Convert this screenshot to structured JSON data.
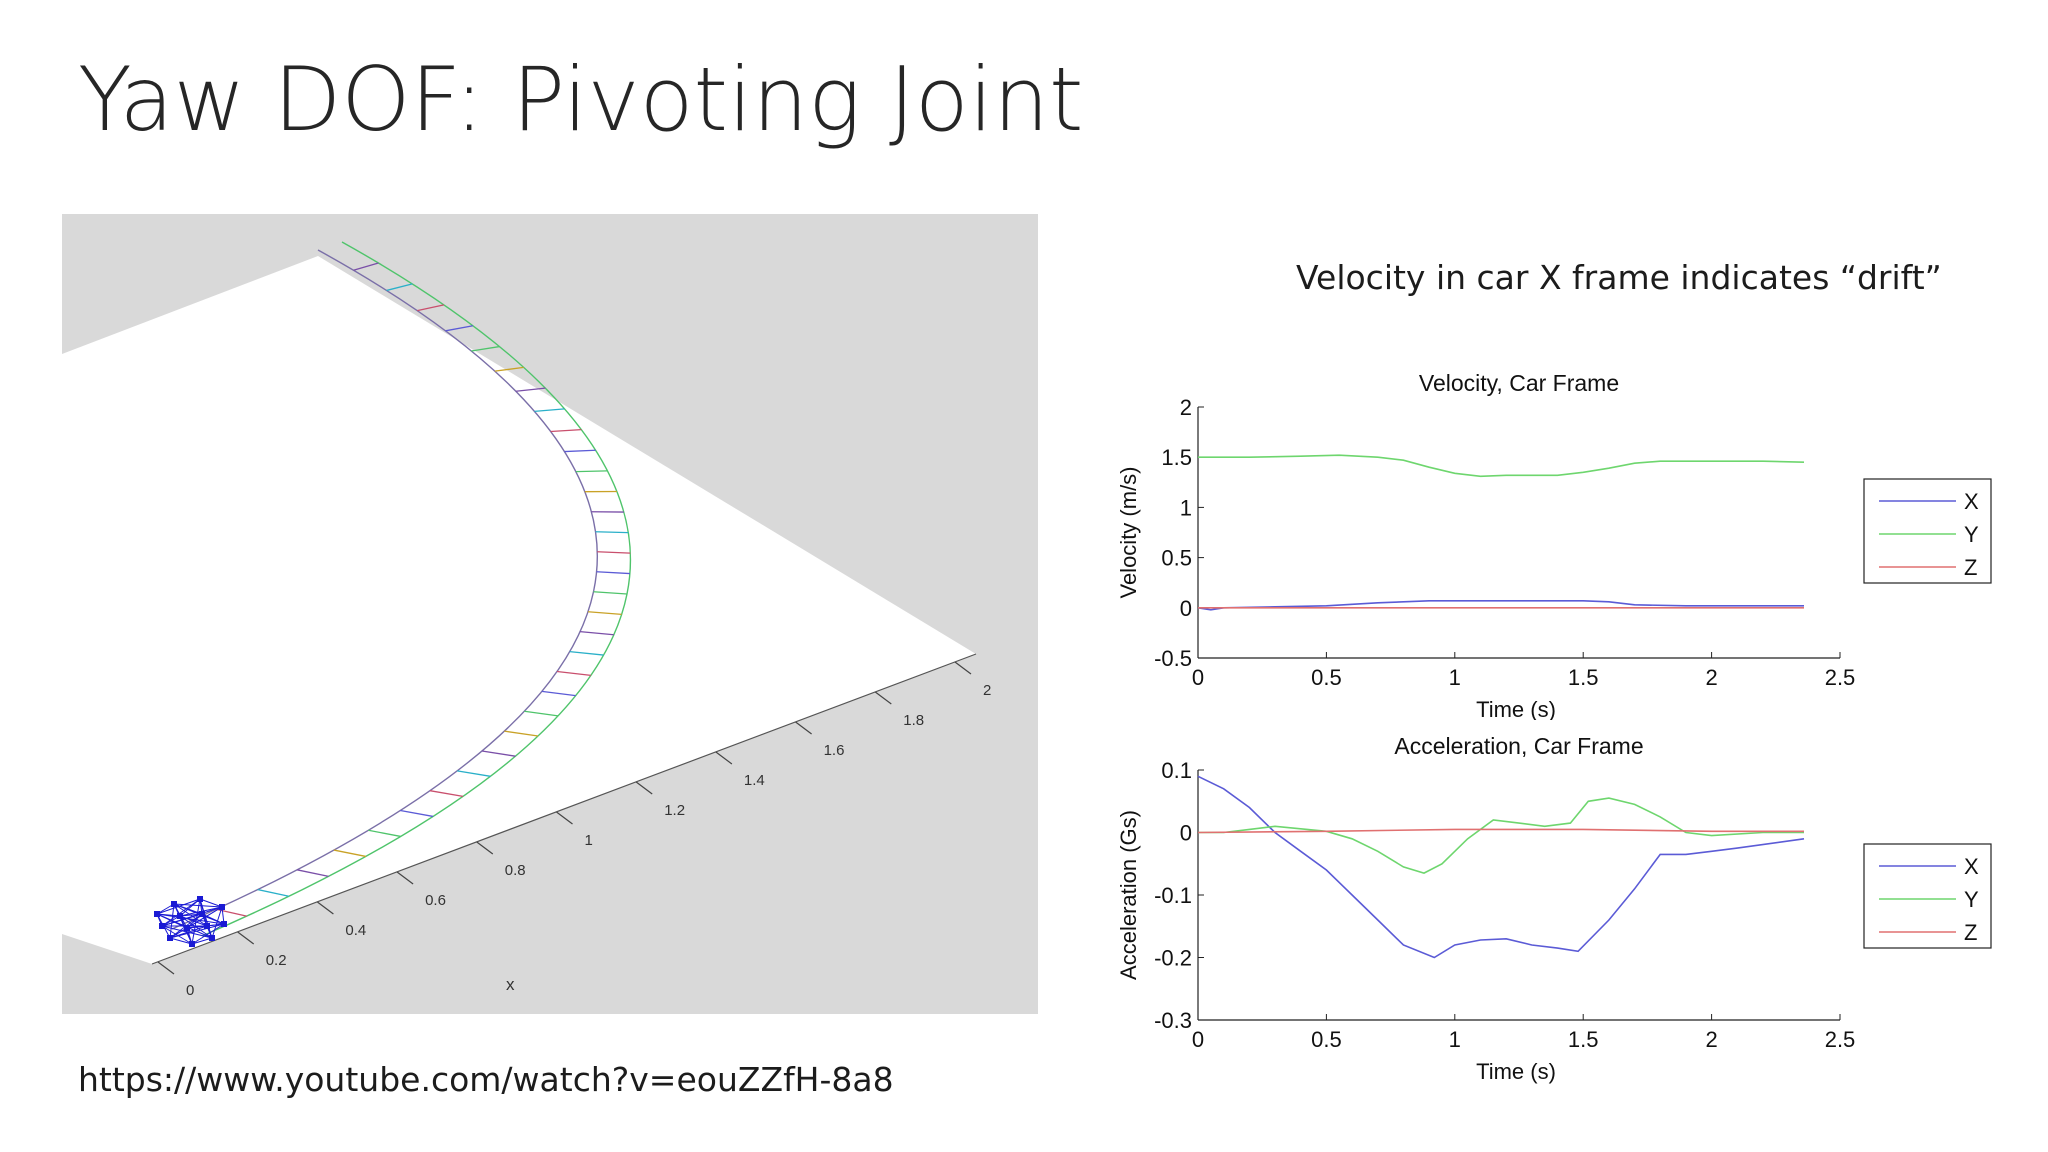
{
  "slide": {
    "title": "Yaw DOF: Pivoting Joint",
    "subtitle": "Velocity in car X frame indicates “drift”",
    "url": "https://www.youtube.com/watch?v=eouZZfH-8a8"
  },
  "simulation": {
    "axis_label": "x",
    "tick_labels": [
      "0",
      "0.2",
      "0.4",
      "0.6",
      "0.8",
      "1",
      "1.2",
      "1.4",
      "1.6",
      "1.8",
      "2"
    ],
    "colors": {
      "background": "#d9d9d9",
      "plane": "#ffffff",
      "robot": "#1a1ad4"
    }
  },
  "chart_data": [
    {
      "type": "line",
      "title": "Velocity, Car Frame",
      "xlabel": "Time (s)",
      "ylabel": "Velocity (m/s)",
      "xlim": [
        0,
        2.5
      ],
      "ylim": [
        -0.5,
        2
      ],
      "xticks": [
        "0",
        "0.5",
        "1",
        "1.5",
        "2",
        "2.5"
      ],
      "yticks": [
        "-0.5",
        "0",
        "0.5",
        "1",
        "1.5",
        "2"
      ],
      "legend_position": "right",
      "series": [
        {
          "name": "X",
          "color": "#5b5bd6",
          "points": [
            [
              0,
              0.0
            ],
            [
              0.05,
              -0.02
            ],
            [
              0.1,
              0.0
            ],
            [
              0.3,
              0.01
            ],
            [
              0.5,
              0.02
            ],
            [
              0.7,
              0.05
            ],
            [
              0.9,
              0.07
            ],
            [
              1.1,
              0.07
            ],
            [
              1.3,
              0.07
            ],
            [
              1.5,
              0.07
            ],
            [
              1.6,
              0.06
            ],
            [
              1.7,
              0.03
            ],
            [
              1.9,
              0.02
            ],
            [
              2.1,
              0.02
            ],
            [
              2.36,
              0.02
            ]
          ]
        },
        {
          "name": "Y",
          "color": "#6ed66e",
          "points": [
            [
              0,
              1.5
            ],
            [
              0.2,
              1.5
            ],
            [
              0.4,
              1.51
            ],
            [
              0.55,
              1.52
            ],
            [
              0.7,
              1.5
            ],
            [
              0.8,
              1.47
            ],
            [
              0.9,
              1.4
            ],
            [
              1.0,
              1.34
            ],
            [
              1.1,
              1.31
            ],
            [
              1.2,
              1.32
            ],
            [
              1.4,
              1.32
            ],
            [
              1.5,
              1.35
            ],
            [
              1.6,
              1.39
            ],
            [
              1.7,
              1.44
            ],
            [
              1.8,
              1.46
            ],
            [
              2.0,
              1.46
            ],
            [
              2.2,
              1.46
            ],
            [
              2.36,
              1.45
            ]
          ]
        },
        {
          "name": "Z",
          "color": "#e07070",
          "points": [
            [
              0,
              0.0
            ],
            [
              0.5,
              0.0
            ],
            [
              1.0,
              0.0
            ],
            [
              1.5,
              0.0
            ],
            [
              2.0,
              0.0
            ],
            [
              2.36,
              0.0
            ]
          ]
        }
      ]
    },
    {
      "type": "line",
      "title": "Acceleration, Car Frame",
      "xlabel": "Time (s)",
      "ylabel": "Acceleration (Gs)",
      "xlim": [
        0,
        2.5
      ],
      "ylim": [
        -0.3,
        0.1
      ],
      "xticks": [
        "0",
        "0.5",
        "1",
        "1.5",
        "2",
        "2.5"
      ],
      "yticks": [
        "-0.3",
        "-0.2",
        "-0.1",
        "0",
        "0.1"
      ],
      "legend_position": "right",
      "series": [
        {
          "name": "X",
          "color": "#5b5bd6",
          "points": [
            [
              0,
              0.09
            ],
            [
              0.1,
              0.07
            ],
            [
              0.2,
              0.04
            ],
            [
              0.3,
              0.0
            ],
            [
              0.4,
              -0.03
            ],
            [
              0.5,
              -0.06
            ],
            [
              0.6,
              -0.1
            ],
            [
              0.7,
              -0.14
            ],
            [
              0.8,
              -0.18
            ],
            [
              0.92,
              -0.2
            ],
            [
              1.0,
              -0.18
            ],
            [
              1.1,
              -0.172
            ],
            [
              1.2,
              -0.17
            ],
            [
              1.3,
              -0.18
            ],
            [
              1.4,
              -0.185
            ],
            [
              1.48,
              -0.19
            ],
            [
              1.6,
              -0.14
            ],
            [
              1.7,
              -0.09
            ],
            [
              1.8,
              -0.035
            ],
            [
              1.9,
              -0.035
            ],
            [
              2.0,
              -0.03
            ],
            [
              2.1,
              -0.025
            ],
            [
              2.36,
              -0.01
            ]
          ]
        },
        {
          "name": "Y",
          "color": "#6ed66e",
          "points": [
            [
              0,
              0.0
            ],
            [
              0.1,
              0.0
            ],
            [
              0.2,
              0.005
            ],
            [
              0.3,
              0.01
            ],
            [
              0.5,
              0.002
            ],
            [
              0.6,
              -0.01
            ],
            [
              0.7,
              -0.03
            ],
            [
              0.8,
              -0.055
            ],
            [
              0.88,
              -0.065
            ],
            [
              0.95,
              -0.05
            ],
            [
              1.05,
              -0.01
            ],
            [
              1.15,
              0.02
            ],
            [
              1.25,
              0.015
            ],
            [
              1.35,
              0.01
            ],
            [
              1.45,
              0.015
            ],
            [
              1.52,
              0.05
            ],
            [
              1.6,
              0.055
            ],
            [
              1.7,
              0.045
            ],
            [
              1.8,
              0.025
            ],
            [
              1.9,
              0.0
            ],
            [
              2.0,
              -0.005
            ],
            [
              2.2,
              0.0
            ],
            [
              2.36,
              0.0
            ]
          ]
        },
        {
          "name": "Z",
          "color": "#e07070",
          "points": [
            [
              0,
              0.0
            ],
            [
              0.5,
              0.002
            ],
            [
              1.0,
              0.005
            ],
            [
              1.5,
              0.005
            ],
            [
              2.0,
              0.002
            ],
            [
              2.36,
              0.002
            ]
          ]
        }
      ]
    }
  ]
}
